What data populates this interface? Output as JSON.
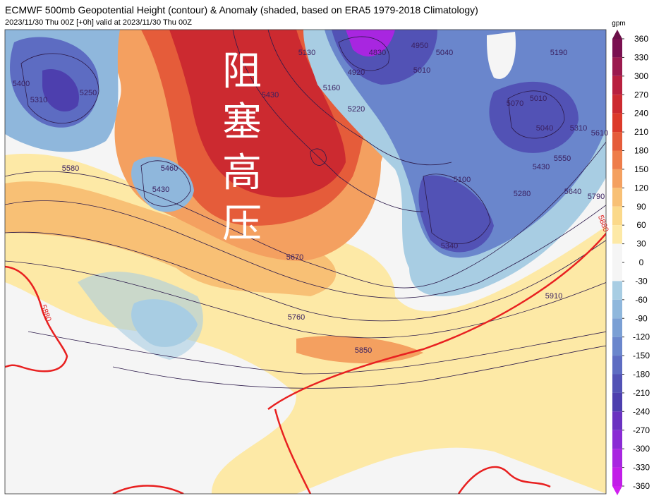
{
  "header": {
    "title": "ECMWF 500mb Geopotential Height (contour) & Anomaly (shaded, based on ERA5 1979-2018 Climatology)",
    "subtitle": "2023/11/30 Thu 00Z [+0h] valid at 2023/11/30 Thu 00Z"
  },
  "annotation": "阻塞高压",
  "colorbar": {
    "unit": "gpm",
    "ticks": [
      360,
      330,
      300,
      270,
      240,
      210,
      180,
      150,
      120,
      90,
      60,
      30,
      0,
      -30,
      -60,
      -90,
      -120,
      -150,
      -180,
      -210,
      -240,
      -270,
      -300,
      -330,
      -360
    ],
    "colors": [
      "#7a1050",
      "#9b1a4e",
      "#b8203f",
      "#cc2a30",
      "#dc3a2a",
      "#e55c3a",
      "#ee7d4a",
      "#f4a060",
      "#f8c075",
      "#fbd98a",
      "#fde9a6",
      "#f5f5f5",
      "#f5f5f5",
      "#a8cde3",
      "#8fb7dc",
      "#7a9fd4",
      "#6a86cc",
      "#5d6cc2",
      "#5252b5",
      "#4d3fae",
      "#6a32c0",
      "#8a2bd4",
      "#a826e0",
      "#c21ee8"
    ],
    "over_color": "#6b0f48",
    "under_color": "#d020f0"
  },
  "contour_labels": [
    5580,
    5460,
    5430,
    5250,
    5310,
    5400,
    5430,
    5160,
    5220,
    5130,
    4920,
    4830,
    5010,
    5040,
    4950,
    5010,
    5040,
    5070,
    5100,
    5280,
    5340,
    5430,
    5550,
    5640,
    5310,
    5190,
    5610,
    5790,
    5670,
    5760,
    5850,
    5910
  ],
  "highlight_labels": [
    5880,
    5880
  ]
}
